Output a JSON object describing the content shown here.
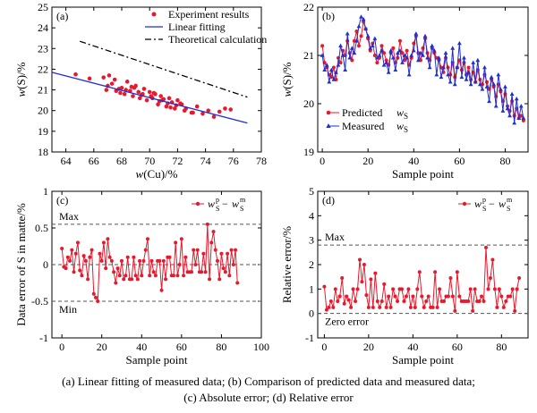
{
  "caption": {
    "line1": "(a)  Linear fitting of measured data; (b) Comparison of predicted data and measured data;",
    "line2": "(c) Absolute error; (d) Relative error"
  },
  "colors": {
    "red": "#e8192c",
    "blue": "#1f2fd0",
    "black": "#000000",
    "gray": "#555555"
  },
  "chart_data": [
    {
      "type": "scatter",
      "panel": "(a)",
      "xlabel": "w(Cu)/%",
      "ylabel": "w(S)/%",
      "xlim": [
        63,
        78
      ],
      "ylim": [
        18,
        25
      ],
      "xticks": [
        64,
        66,
        68,
        70,
        72,
        74,
        76,
        78
      ],
      "yticks": [
        18,
        19,
        20,
        21,
        22,
        23,
        24,
        25
      ],
      "legend_position": "top-right",
      "series": [
        {
          "name": "Experiment results",
          "style": "points",
          "color": "#e8192c",
          "x": [
            64.7,
            65.7,
            66.7,
            66.9,
            67.1,
            67.3,
            67.5,
            67.8,
            68.0,
            68.2,
            68.4,
            68.6,
            68.8,
            69.0,
            69.2,
            69.4,
            69.6,
            69.8,
            70.0,
            70.2,
            70.4,
            70.6,
            70.8,
            71.0,
            71.2,
            71.4,
            71.6,
            71.8,
            72.0,
            72.3,
            72.6,
            73.0,
            73.4,
            73.8,
            74.2,
            74.6,
            75.0,
            75.4,
            75.8,
            67.0,
            67.6,
            68.3,
            68.9,
            69.5,
            70.1,
            70.7,
            71.3,
            71.9,
            72.5,
            73.1,
            67.9,
            68.7,
            69.3,
            70.3,
            70.9,
            71.5,
            72.2
          ],
          "y": [
            21.75,
            21.55,
            21.6,
            21.0,
            21.7,
            21.3,
            21.5,
            21.05,
            21.1,
            20.8,
            21.4,
            20.95,
            20.7,
            21.2,
            20.9,
            20.75,
            21.05,
            20.5,
            20.9,
            20.6,
            20.8,
            20.3,
            20.7,
            20.55,
            20.2,
            20.6,
            20.4,
            20.1,
            20.5,
            20.3,
            20.1,
            19.9,
            20.2,
            19.85,
            20.0,
            19.7,
            19.95,
            20.1,
            20.05,
            21.2,
            20.95,
            21.0,
            21.1,
            20.8,
            20.7,
            20.45,
            20.35,
            20.25,
            20.0,
            19.9,
            20.85,
            21.15,
            20.6,
            20.85,
            20.5,
            20.15,
            20.35
          ]
        },
        {
          "name": "Linear fitting",
          "style": "solid",
          "color": "#1f2fd0",
          "x": [
            63,
            77
          ],
          "y": [
            21.85,
            19.4
          ]
        },
        {
          "name": "Theoretical calculation",
          "style": "dashdot",
          "color": "#000000",
          "x": [
            65,
            77
          ],
          "y": [
            23.35,
            20.65
          ]
        }
      ]
    },
    {
      "type": "line",
      "panel": "(b)",
      "xlabel": "Sample point",
      "ylabel": "w(S)/%",
      "xlim": [
        -2,
        90
      ],
      "ylim": [
        19,
        22
      ],
      "xticks": [
        0,
        20,
        40,
        60,
        80
      ],
      "yticks": [
        19,
        20,
        21,
        22
      ],
      "legend_position": "bottom-left",
      "series": [
        {
          "name": "Predicted",
          "subscript": "wS",
          "marker": "circle",
          "color": "#e8192c",
          "values": [
            21.2,
            20.85,
            20.75,
            20.6,
            20.55,
            20.75,
            20.5,
            20.95,
            20.85,
            21.1,
            21.0,
            21.3,
            21.05,
            20.9,
            21.3,
            21.5,
            21.2,
            21.4,
            21.7,
            21.55,
            21.35,
            21.1,
            21.25,
            21.0,
            20.85,
            20.95,
            21.2,
            21.05,
            20.9,
            20.8,
            21.05,
            21.15,
            20.85,
            20.95,
            21.3,
            21.05,
            20.9,
            21.1,
            20.8,
            20.95,
            21.25,
            21.4,
            21.05,
            20.9,
            21.15,
            21.35,
            21.05,
            20.9,
            21.15,
            21.05,
            20.95,
            20.9,
            20.75,
            20.65,
            20.95,
            20.75,
            20.6,
            20.85,
            20.55,
            20.75,
            20.9,
            20.7,
            20.85,
            20.6,
            20.75,
            20.5,
            20.65,
            20.45,
            20.7,
            20.5,
            20.4,
            20.6,
            20.45,
            20.3,
            20.5,
            20.35,
            20.15,
            20.4,
            20.25,
            20.05,
            20.2,
            19.95,
            19.85,
            20.05,
            19.75,
            19.9,
            19.7,
            19.75,
            19.65
          ]
        },
        {
          "name": "Measured",
          "subscript": "wS",
          "marker": "triangle",
          "color": "#1f2fd0",
          "values": [
            21.0,
            20.7,
            20.8,
            20.45,
            20.7,
            20.5,
            20.65,
            20.8,
            21.2,
            21.0,
            20.7,
            21.45,
            20.95,
            21.15,
            21.05,
            21.3,
            21.6,
            21.8,
            21.75,
            21.55,
            21.4,
            21.15,
            21.2,
            21.35,
            20.95,
            21.0,
            21.1,
            20.8,
            20.85,
            20.65,
            21.1,
            20.95,
            20.7,
            21.05,
            21.1,
            20.85,
            21.0,
            20.95,
            20.6,
            21.0,
            21.1,
            21.45,
            20.9,
            21.05,
            21.0,
            21.4,
            20.95,
            20.75,
            21.2,
            21.1,
            20.6,
            20.95,
            20.55,
            20.75,
            21.05,
            20.6,
            20.45,
            21.15,
            20.4,
            20.75,
            21.25,
            20.55,
            20.95,
            20.5,
            20.65,
            20.4,
            20.85,
            20.45,
            20.9,
            20.4,
            20.3,
            20.75,
            20.35,
            20.05,
            20.55,
            20.4,
            19.95,
            20.6,
            20.3,
            19.85,
            20.35,
            19.9,
            19.75,
            20.2,
            19.6,
            20.1,
            19.7,
            19.95,
            19.7
          ]
        }
      ]
    },
    {
      "type": "line",
      "panel": "(c)",
      "xlabel": "Sample point",
      "ylabel": "Data error of S in matte/%",
      "xlim": [
        -5,
        100
      ],
      "ylim": [
        -1.0,
        1.0
      ],
      "xticks": [
        0,
        20,
        40,
        60,
        80,
        100
      ],
      "yticks": [
        -1.0,
        -0.5,
        0,
        0.5,
        1.0
      ],
      "legend_position": "top-right",
      "reference_lines": [
        {
          "label": "Max",
          "y": 0.55
        },
        {
          "label": "",
          "y": 0
        },
        {
          "label": "Min",
          "y": -0.5
        }
      ],
      "series": [
        {
          "name": "wS p − wS m",
          "legend_main": "w",
          "legend_sub": "S",
          "legend_sup": "p",
          "legend_minus": "−",
          "legend_main2": "w",
          "legend_sub2": "S",
          "legend_sup2": "m",
          "color": "#e8192c",
          "values": [
            0.22,
            -0.03,
            -0.05,
            0.1,
            0.05,
            0.2,
            -0.1,
            0.15,
            0.3,
            -0.08,
            -0.15,
            0.12,
            0.05,
            -0.2,
            0.1,
            0.2,
            -0.4,
            -0.45,
            -0.5,
            0.15,
            0.05,
            0.3,
            -0.05,
            0.35,
            0.1,
            0.05,
            -0.1,
            -0.25,
            -0.05,
            -0.15,
            0.05,
            -0.2,
            -0.15,
            0.1,
            -0.2,
            -0.2,
            0.1,
            -0.15,
            -0.2,
            0.05,
            -0.15,
            0.05,
            0.2,
            0.35,
            -0.15,
            0.05,
            -0.1,
            -0.15,
            0.05,
            0.05,
            -0.35,
            0.05,
            -0.2,
            0.1,
            0.1,
            -0.15,
            -0.15,
            0.3,
            -0.15,
            0.0,
            0.35,
            -0.15,
            0.1,
            -0.1,
            -0.1,
            -0.1,
            0.2,
            0.0,
            0.2,
            -0.1,
            -0.1,
            0.15,
            -0.1,
            0.55,
            -0.2,
            0.3,
            0.45,
            0.2,
            0.05,
            -0.2,
            0.15,
            -0.05,
            -0.1,
            0.15,
            -0.15,
            0.2,
            0.0,
            0.2,
            -0.25
          ]
        }
      ]
    },
    {
      "type": "line",
      "panel": "(d)",
      "xlabel": "Sample point",
      "ylabel": "Relative error/%",
      "xlim": [
        -3,
        92
      ],
      "ylim": [
        -1,
        5
      ],
      "xticks": [
        0,
        20,
        40,
        60,
        80
      ],
      "yticks": [
        -1,
        0,
        1,
        2,
        3,
        4,
        5
      ],
      "legend_position": "top-right",
      "reference_lines": [
        {
          "label": "Max",
          "y": 2.8
        },
        {
          "label": "Zero error",
          "y": 0
        }
      ],
      "series": [
        {
          "name": "wS p − wS m",
          "legend_main": "w",
          "legend_sub": "S",
          "legend_sup": "p",
          "legend_minus": "−",
          "legend_main2": "w",
          "legend_sub2": "S",
          "legend_sup2": "m",
          "color": "#e8192c",
          "values": [
            1.1,
            0.15,
            0.25,
            0.5,
            0.25,
            1.0,
            0.5,
            0.7,
            1.45,
            0.4,
            0.7,
            0.55,
            0.25,
            1.0,
            0.5,
            1.0,
            2.2,
            1.3,
            2.0,
            0.75,
            0.25,
            1.4,
            0.25,
            1.65,
            0.5,
            0.25,
            0.5,
            1.2,
            0.25,
            0.7,
            0.25,
            1.0,
            0.7,
            0.5,
            1.0,
            1.0,
            0.5,
            0.7,
            1.0,
            0.25,
            0.7,
            0.25,
            1.0,
            1.7,
            0.7,
            0.25,
            0.5,
            0.7,
            0.25,
            0.25,
            1.7,
            0.25,
            1.0,
            0.5,
            0.5,
            0.7,
            0.7,
            1.45,
            0.7,
            0.1,
            1.7,
            0.7,
            0.5,
            0.5,
            0.5,
            0.5,
            1.0,
            0.1,
            1.0,
            0.5,
            0.5,
            0.7,
            0.5,
            2.7,
            1.0,
            1.45,
            2.2,
            1.0,
            0.25,
            1.0,
            0.7,
            0.25,
            0.5,
            0.7,
            0.7,
            1.0,
            0.1,
            1.0,
            1.45
          ]
        }
      ]
    }
  ]
}
